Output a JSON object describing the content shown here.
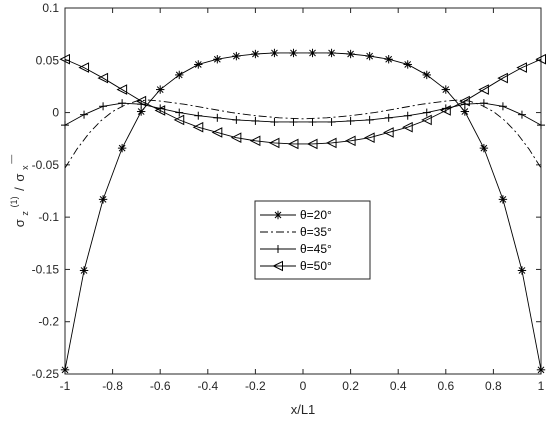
{
  "chart_data": {
    "type": "line",
    "title": "",
    "xlabel": "x/L1",
    "ylabel": {
      "base": "σ",
      "sub": "z",
      "sup": "(1)",
      "sep": "/",
      "base2": "σ",
      "sub2": "x",
      "overbar": "—"
    },
    "xlim": [
      -1,
      1
    ],
    "ylim": [
      -0.25,
      0.1
    ],
    "xticks": [
      "-1",
      "-0.8",
      "-0.6",
      "-0.4",
      "-0.2",
      "0",
      "0.2",
      "0.4",
      "0.6",
      "0.8",
      "1"
    ],
    "yticks": [
      "-0.25",
      "-0.2",
      "-0.15",
      "-0.1",
      "-0.05",
      "0",
      "0.05",
      "0.1"
    ],
    "grid": false,
    "legend_position": "center",
    "series": [
      {
        "name": "θ=20°",
        "line": "solid",
        "marker": "asterisk",
        "x": [
          -1,
          -0.92,
          -0.84,
          -0.76,
          -0.68,
          -0.6,
          -0.52,
          -0.44,
          -0.36,
          -0.28,
          -0.2,
          -0.12,
          -0.04,
          0.04,
          0.12,
          0.2,
          0.28,
          0.36,
          0.44,
          0.52,
          0.6,
          0.68,
          0.76,
          0.84,
          0.92,
          1
        ],
        "y": [
          -0.246,
          -0.151,
          -0.083,
          -0.034,
          0.001,
          0.022,
          0.036,
          0.046,
          0.051,
          0.054,
          0.056,
          0.057,
          0.057,
          0.057,
          0.057,
          0.056,
          0.054,
          0.051,
          0.046,
          0.036,
          0.022,
          0.001,
          -0.034,
          -0.083,
          -0.151,
          -0.246
        ]
      },
      {
        "name": "θ=35°",
        "line": "dashdot",
        "marker": "none",
        "x": [
          -1,
          -0.95,
          -0.9,
          -0.85,
          -0.8,
          -0.75,
          -0.7,
          -0.65,
          -0.6,
          -0.5,
          -0.4,
          -0.3,
          -0.2,
          -0.1,
          0,
          0.1,
          0.2,
          0.3,
          0.4,
          0.5,
          0.6,
          0.65,
          0.7,
          0.75,
          0.8,
          0.85,
          0.9,
          0.95,
          1
        ],
        "y": [
          -0.053,
          -0.035,
          -0.02,
          -0.008,
          0.001,
          0.007,
          0.011,
          0.012,
          0.011,
          0.008,
          0.004,
          0.0,
          -0.003,
          -0.005,
          -0.006,
          -0.005,
          -0.003,
          0.0,
          0.004,
          0.008,
          0.011,
          0.012,
          0.011,
          0.007,
          0.001,
          -0.008,
          -0.02,
          -0.035,
          -0.053
        ]
      },
      {
        "name": "θ=45°",
        "line": "solid",
        "marker": "plus",
        "x": [
          -1,
          -0.92,
          -0.84,
          -0.76,
          -0.68,
          -0.6,
          -0.52,
          -0.44,
          -0.36,
          -0.28,
          -0.2,
          -0.12,
          -0.04,
          0.04,
          0.12,
          0.2,
          0.28,
          0.36,
          0.44,
          0.52,
          0.6,
          0.68,
          0.76,
          0.84,
          0.92,
          1
        ],
        "y": [
          -0.012,
          -0.002,
          0.006,
          0.009,
          0.008,
          0.004,
          0.0,
          -0.003,
          -0.005,
          -0.007,
          -0.008,
          -0.009,
          -0.009,
          -0.009,
          -0.009,
          -0.008,
          -0.007,
          -0.005,
          -0.003,
          0.0,
          0.004,
          0.008,
          0.009,
          0.006,
          -0.002,
          -0.012
        ]
      },
      {
        "name": "θ=50°",
        "line": "solid",
        "marker": "triangle-left",
        "x": [
          -1,
          -0.92,
          -0.84,
          -0.76,
          -0.68,
          -0.6,
          -0.52,
          -0.44,
          -0.36,
          -0.28,
          -0.2,
          -0.12,
          -0.04,
          0.04,
          0.12,
          0.2,
          0.28,
          0.36,
          0.44,
          0.52,
          0.6,
          0.68,
          0.76,
          0.84,
          0.92,
          1
        ],
        "y": [
          0.051,
          0.043,
          0.033,
          0.022,
          0.011,
          0.002,
          -0.007,
          -0.014,
          -0.019,
          -0.024,
          -0.027,
          -0.029,
          -0.03,
          -0.03,
          -0.029,
          -0.027,
          -0.024,
          -0.019,
          -0.014,
          -0.007,
          0.002,
          0.011,
          0.022,
          0.033,
          0.043,
          0.051
        ]
      }
    ]
  }
}
